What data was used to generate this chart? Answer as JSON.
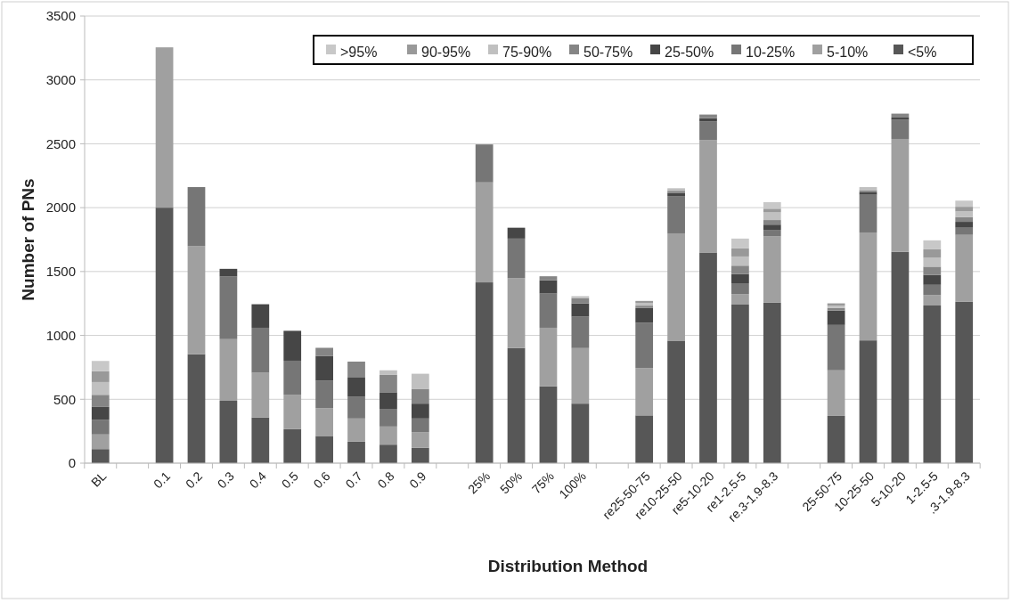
{
  "chart_data": {
    "type": "bar",
    "stacked": true,
    "xlabel": "Distribution Method",
    "ylabel": "Number of PNs",
    "categories": [
      "BL",
      null,
      "0.1",
      "0.2",
      "0.3",
      "0.4",
      "0.5",
      "0.6",
      "0.7",
      "0.8",
      "0.9",
      null,
      "25%",
      "50%",
      "75%",
      "100%",
      null,
      "re25-50-75",
      "re10-25-50",
      "re5-10-20",
      "re1-2.5-5",
      "re.3-1.9-8.3",
      null,
      "25-50-75",
      "10-25-50",
      "5-10-20",
      "1-2.5-5",
      ".3-1.9-8.3"
    ],
    "ylim": [
      0,
      3500
    ],
    "yticks": [
      0,
      500,
      1000,
      1500,
      2000,
      2500,
      3000,
      3500
    ],
    "grid": "y",
    "legend": "top",
    "series": [
      {
        "name": "<5%",
        "color": "#575757",
        "values": [
          110,
          null,
          2000,
          853,
          488,
          357,
          266,
          213,
          169,
          145,
          121,
          null,
          1415,
          901,
          601,
          466,
          null,
          374,
          959,
          1649,
          1241,
          1256,
          null,
          370,
          961,
          1654,
          1234,
          1263
        ]
      },
      {
        "name": "5-10%",
        "color": "#a0a0a0",
        "values": [
          115,
          null,
          1255,
          847,
          483,
          351,
          270,
          217,
          181,
          142,
          121,
          null,
          783,
          548,
          459,
          435,
          null,
          370,
          840,
          879,
          82,
          519,
          null,
          357,
          845,
          884,
          82,
          524
        ]
      },
      {
        "name": "10-25%",
        "color": "#767676",
        "values": [
          115,
          null,
          null,
          461,
          490,
          352,
          266,
          217,
          172,
          138,
          108,
          null,
          297,
          309,
          268,
          246,
          null,
          355,
          292,
          148,
          85,
          51,
          null,
          355,
          295,
          150,
          80,
          56
        ]
      },
      {
        "name": "25-50%",
        "color": "#464646",
        "values": [
          100,
          null,
          null,
          null,
          60,
          184,
          234,
          193,
          152,
          130,
          116,
          null,
          null,
          85,
          104,
          104,
          null,
          116,
          25,
          24,
          72,
          41,
          null,
          113,
          19,
          17,
          77,
          46
        ]
      },
      {
        "name": "50-75%",
        "color": "#858585",
        "values": [
          95,
          null,
          null,
          null,
          null,
          null,
          null,
          63,
          121,
          136,
          116,
          null,
          null,
          null,
          31,
          41,
          null,
          18,
          16,
          29,
          66,
          36,
          null,
          20,
          17,
          31,
          65,
          38
        ]
      },
      {
        "name": "75-90%",
        "color": "#c0c0c0",
        "values": [
          100,
          null,
          null,
          null,
          null,
          null,
          null,
          null,
          null,
          36,
          118,
          null,
          null,
          null,
          null,
          15,
          null,
          22,
          20,
          null,
          72,
          60,
          null,
          17,
          24,
          null,
          70,
          44
        ]
      },
      {
        "name": "90-95%",
        "color": "#999999",
        "values": [
          85,
          null,
          null,
          null,
          null,
          null,
          null,
          null,
          null,
          null,
          null,
          null,
          null,
          null,
          null,
          null,
          null,
          15,
          null,
          null,
          63,
          29,
          null,
          19,
          null,
          null,
          66,
          36
        ]
      },
      {
        "name": ">95%",
        "color": "#c8c8c8",
        "values": [
          80,
          null,
          null,
          null,
          null,
          null,
          null,
          null,
          null,
          null,
          null,
          null,
          null,
          null,
          null,
          null,
          null,
          null,
          null,
          null,
          77,
          51,
          null,
          null,
          null,
          null,
          70,
          48
        ]
      }
    ]
  }
}
